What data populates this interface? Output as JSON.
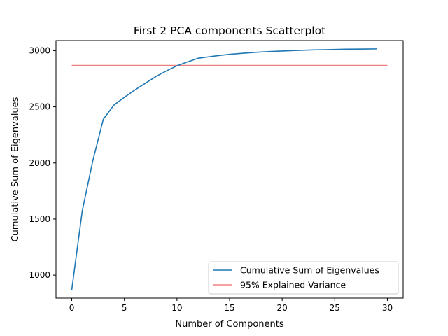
{
  "chart_data": {
    "type": "line",
    "title": "First 2 PCA components Scatterplot",
    "xlabel": "Number of Components",
    "ylabel": "Cumulative Sum of Eigenvalues",
    "xlim": [
      -1.5,
      31.5
    ],
    "ylim": [
      795,
      3090
    ],
    "xticks": [
      0,
      5,
      10,
      15,
      20,
      25,
      30
    ],
    "yticks": [
      1000,
      1500,
      2000,
      2500,
      3000
    ],
    "grid": false,
    "legend_position": "lower right",
    "series": [
      {
        "name": "Cumulative Sum of Eigenvalues",
        "color": "#1f77b4",
        "x": [
          0,
          1,
          2,
          3,
          4,
          5,
          6,
          7,
          8,
          9,
          10,
          11,
          12,
          13,
          14,
          15,
          16,
          17,
          18,
          19,
          20,
          21,
          22,
          23,
          24,
          25,
          26,
          27,
          28,
          29
        ],
        "y": [
          870,
          1575,
          2020,
          2390,
          2515,
          2585,
          2650,
          2710,
          2770,
          2820,
          2865,
          2900,
          2932,
          2945,
          2957,
          2967,
          2975,
          2982,
          2988,
          2993,
          2997,
          3001,
          3004,
          3007,
          3009,
          3011,
          3013,
          3014,
          3015,
          3016
        ]
      },
      {
        "name": "95% Explained Variance",
        "color": "#f08080",
        "x": [
          0,
          30
        ],
        "y": [
          2868,
          2868
        ]
      }
    ]
  }
}
